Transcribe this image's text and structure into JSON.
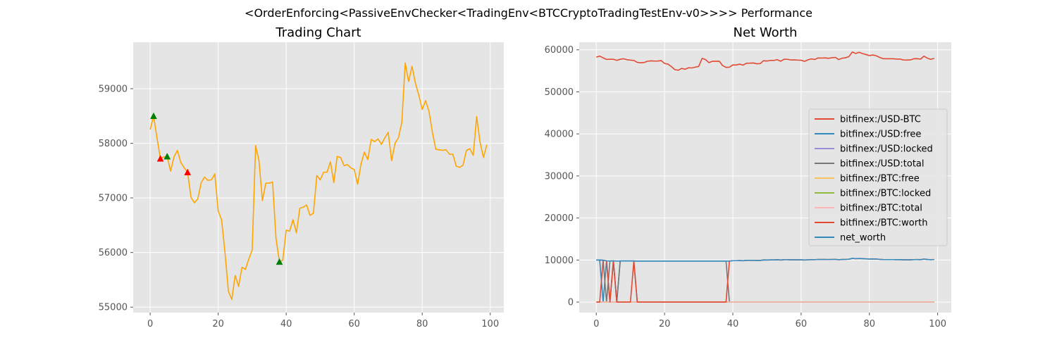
{
  "figure": {
    "suptitle": "<OrderEnforcing<PassiveEnvChecker<TradingEnv<BTCCryptoTradingTestEnv-v0>>>> Performance"
  },
  "colors": {
    "plot_bg": "#e5e5e5",
    "grid": "#ffffff",
    "tick_label": "#555555",
    "price": "#ffa500",
    "buy": "#008000",
    "sell": "#ff0000",
    "text": "#000000"
  },
  "chart_data": [
    {
      "type": "line",
      "title": "Trading Chart",
      "xlabel": "",
      "ylabel": "",
      "xlim": [
        -5,
        104
      ],
      "ylim": [
        54900,
        59850
      ],
      "xticks": [
        0,
        20,
        40,
        60,
        80,
        100
      ],
      "yticks": [
        55000,
        56000,
        57000,
        58000,
        59000
      ],
      "grid": true,
      "series": [
        {
          "color": "#ffa500",
          "values": [
            58250,
            58500,
            58100,
            57720,
            57750,
            57760,
            57490,
            57750,
            57870,
            57650,
            57550,
            57470,
            57010,
            56910,
            56980,
            57280,
            57380,
            57320,
            57330,
            57440,
            56760,
            56600,
            56000,
            55290,
            55140,
            55580,
            55380,
            55730,
            55690,
            55880,
            56050,
            57960,
            57680,
            56950,
            57270,
            57270,
            57290,
            56260,
            55830,
            55860,
            56410,
            56390,
            56600,
            56360,
            56810,
            56830,
            56870,
            56680,
            56720,
            57410,
            57330,
            57470,
            57470,
            57660,
            57280,
            57760,
            57740,
            57590,
            57610,
            57550,
            57520,
            57250,
            57620,
            57840,
            57700,
            58070,
            58030,
            58080,
            57980,
            58100,
            58200,
            57680,
            58000,
            58100,
            58380,
            59470,
            59130,
            59410,
            59100,
            58880,
            58620,
            58780,
            58580,
            58200,
            57890,
            57880,
            57870,
            57880,
            57800,
            57800,
            57580,
            57560,
            57600,
            57870,
            57900,
            57780,
            58490,
            58020,
            57740,
            57970
          ]
        }
      ],
      "buy_markers": [
        {
          "x": 1,
          "y": 58500
        },
        {
          "x": 5,
          "y": 57760
        },
        {
          "x": 38,
          "y": 55830
        }
      ],
      "sell_markers": [
        {
          "x": 3,
          "y": 57720
        },
        {
          "x": 11,
          "y": 57470
        }
      ]
    },
    {
      "type": "line",
      "title": "Net Worth",
      "xlabel": "",
      "ylabel": "",
      "xlim": [
        -5,
        104
      ],
      "ylim": [
        -2500,
        61800
      ],
      "xticks": [
        0,
        20,
        40,
        60,
        80,
        100
      ],
      "yticks": [
        0,
        10000,
        20000,
        30000,
        40000,
        50000,
        60000
      ],
      "grid": true,
      "legend_position": "center-right",
      "series": [
        {
          "name": "bitfinex:/USD-BTC",
          "color": "#e24a33",
          "values": [
            58250,
            58500,
            58100,
            57720,
            57750,
            57760,
            57490,
            57750,
            57870,
            57650,
            57550,
            57470,
            57010,
            56910,
            56980,
            57280,
            57380,
            57320,
            57330,
            57440,
            56760,
            56600,
            56000,
            55290,
            55140,
            55580,
            55380,
            55730,
            55690,
            55880,
            56050,
            57960,
            57680,
            56950,
            57270,
            57270,
            57290,
            56260,
            55830,
            55860,
            56410,
            56390,
            56600,
            56360,
            56810,
            56830,
            56870,
            56680,
            56720,
            57410,
            57330,
            57470,
            57470,
            57660,
            57280,
            57760,
            57740,
            57590,
            57610,
            57550,
            57520,
            57250,
            57620,
            57840,
            57700,
            58070,
            58030,
            58080,
            57980,
            58100,
            58200,
            57680,
            58000,
            58100,
            58380,
            59470,
            59130,
            59410,
            59100,
            58880,
            58620,
            58780,
            58580,
            58200,
            57890,
            57880,
            57870,
            57880,
            57800,
            57800,
            57580,
            57560,
            57600,
            57870,
            57900,
            57780,
            58490,
            58020,
            57740,
            57970
          ]
        },
        {
          "name": "bitfinex:/USD:free",
          "color": "#348abd",
          "values": [
            10000,
            10000,
            0,
            9800,
            0,
            9790,
            0,
            9780,
            9780,
            9780,
            9780,
            9780,
            0,
            0,
            0,
            0,
            0,
            0,
            0,
            0,
            0,
            0,
            0,
            0,
            0,
            0,
            0,
            0,
            0,
            0,
            0,
            0,
            0,
            0,
            0,
            0,
            0,
            0,
            0,
            0,
            0,
            0,
            0,
            0,
            0,
            0,
            0,
            0,
            0,
            0,
            0,
            0,
            0,
            0,
            0,
            0,
            0,
            0,
            0,
            0,
            0,
            0,
            0,
            0,
            0,
            0,
            0,
            0,
            0,
            0,
            0,
            0,
            0,
            0,
            0,
            0,
            0,
            0,
            0,
            0,
            0,
            0,
            0,
            0,
            0,
            0,
            0,
            0,
            0,
            0,
            0,
            0,
            0,
            0,
            0,
            0,
            0,
            0,
            0,
            0
          ]
        },
        {
          "name": "bitfinex:/USD:locked",
          "color": "#988ed5",
          "values": [
            0,
            0,
            0,
            0,
            0,
            0,
            0,
            0,
            0,
            0,
            0,
            0,
            0,
            0,
            0,
            0,
            0,
            0,
            0,
            0,
            0,
            0,
            0,
            0,
            0,
            0,
            0,
            0,
            0,
            0,
            0,
            0,
            0,
            0,
            0,
            0,
            0,
            0,
            0,
            0,
            0,
            0,
            0,
            0,
            0,
            0,
            0,
            0,
            0,
            0,
            0,
            0,
            0,
            0,
            0,
            0,
            0,
            0,
            0,
            0,
            0,
            0,
            0,
            0,
            0,
            0,
            0,
            0,
            0,
            0,
            0,
            0,
            0,
            0,
            0,
            0,
            0,
            0,
            0,
            0,
            0,
            0,
            0,
            0,
            0,
            0,
            0,
            0,
            0,
            0,
            0,
            0,
            0,
            0,
            0,
            0,
            0,
            0,
            0,
            0
          ]
        },
        {
          "name": "bitfinex:/USD:total",
          "color": "#777777",
          "values": [
            10000,
            10000,
            9950,
            0,
            9780,
            9790,
            0,
            9780,
            9780,
            9780,
            9780,
            9780,
            9760,
            9760,
            9760,
            9760,
            9760,
            9760,
            9760,
            9760,
            9760,
            9760,
            9760,
            9760,
            9760,
            9760,
            9760,
            9760,
            9760,
            9760,
            9760,
            9760,
            9760,
            9760,
            9760,
            9760,
            9760,
            9760,
            9760,
            0,
            0,
            0,
            0,
            0,
            0,
            0,
            0,
            0,
            0,
            0,
            0,
            0,
            0,
            0,
            0,
            0,
            0,
            0,
            0,
            0,
            0,
            0,
            0,
            0,
            0,
            0,
            0,
            0,
            0,
            0,
            0,
            0,
            0,
            0,
            0,
            0,
            0,
            0,
            0,
            0,
            0,
            0,
            0,
            0,
            0,
            0,
            0,
            0,
            0,
            0,
            0,
            0,
            0,
            0,
            0,
            0,
            0,
            0,
            0,
            0
          ]
        },
        {
          "name": "bitfinex:/BTC:free",
          "color": "#fbc15e",
          "values": [
            0,
            0,
            0.17,
            0.17,
            0.17,
            0,
            0,
            0,
            0,
            0,
            0,
            0,
            0,
            0,
            0,
            0,
            0,
            0,
            0,
            0,
            0,
            0,
            0,
            0,
            0,
            0,
            0,
            0,
            0,
            0,
            0,
            0,
            0,
            0,
            0,
            0,
            0,
            0,
            0,
            0.17,
            0.17,
            0.17,
            0.17,
            0.17,
            0.17,
            0.17,
            0.17,
            0.17,
            0.17,
            0.17,
            0.17,
            0.17,
            0.17,
            0.17,
            0.17,
            0.17,
            0.17,
            0.17,
            0.17,
            0.17,
            0.17,
            0.17,
            0.17,
            0.17,
            0.17,
            0.17,
            0.17,
            0.17,
            0.17,
            0.17,
            0.17,
            0.17,
            0.17,
            0.17,
            0.17,
            0.17,
            0.17,
            0.17,
            0.17,
            0.17,
            0.17,
            0.17,
            0.17,
            0.17,
            0.17,
            0.17,
            0.17,
            0.17,
            0.17,
            0.17,
            0.17,
            0.17,
            0.17,
            0.17,
            0.17,
            0.17,
            0.17,
            0.17,
            0.17,
            0.17
          ]
        },
        {
          "name": "bitfinex:/BTC:locked",
          "color": "#8eba42",
          "values": [
            0,
            0,
            0,
            0,
            0,
            0,
            0,
            0,
            0,
            0,
            0,
            0,
            0,
            0,
            0,
            0,
            0,
            0,
            0,
            0,
            0,
            0,
            0,
            0,
            0,
            0,
            0,
            0,
            0,
            0,
            0,
            0,
            0,
            0,
            0,
            0,
            0,
            0,
            0,
            0,
            0,
            0,
            0,
            0,
            0,
            0,
            0,
            0,
            0,
            0,
            0,
            0,
            0,
            0,
            0,
            0,
            0,
            0,
            0,
            0,
            0,
            0,
            0,
            0,
            0,
            0,
            0,
            0,
            0,
            0,
            0,
            0,
            0,
            0,
            0,
            0,
            0,
            0,
            0,
            0,
            0,
            0,
            0,
            0,
            0,
            0,
            0,
            0,
            0,
            0,
            0,
            0,
            0,
            0,
            0,
            0,
            0,
            0,
            0,
            0
          ]
        },
        {
          "name": "bitfinex:/BTC:total",
          "color": "#ffb5b8",
          "values": [
            0,
            0,
            0.17,
            0.17,
            0.17,
            0,
            0,
            0,
            0,
            0,
            0,
            0,
            0,
            0,
            0,
            0,
            0,
            0,
            0,
            0,
            0,
            0,
            0,
            0,
            0,
            0,
            0,
            0,
            0,
            0,
            0,
            0,
            0,
            0,
            0,
            0,
            0,
            0,
            0,
            0.17,
            0.17,
            0.17,
            0.17,
            0.17,
            0.17,
            0.17,
            0.17,
            0.17,
            0.17,
            0.17,
            0.17,
            0.17,
            0.17,
            0.17,
            0.17,
            0.17,
            0.17,
            0.17,
            0.17,
            0.17,
            0.17,
            0.17,
            0.17,
            0.17,
            0.17,
            0.17,
            0.17,
            0.17,
            0.17,
            0.17,
            0.17,
            0.17,
            0.17,
            0.17,
            0.17,
            0.17,
            0.17,
            0.17,
            0.17,
            0.17,
            0.17,
            0.17,
            0.17,
            0.17,
            0.17,
            0.17,
            0.17,
            0.17,
            0.17,
            0.17,
            0.17,
            0.17,
            0.17,
            0.17,
            0.17,
            0.17,
            0.17,
            0.17,
            0.17,
            0.17
          ]
        },
        {
          "name": "bitfinex:/BTC:worth",
          "color": "#e24a33",
          "values": [
            0,
            0,
            9950,
            9800,
            0,
            9790,
            0,
            0,
            0,
            0,
            0,
            9780,
            0,
            0,
            0,
            0,
            0,
            0,
            0,
            0,
            0,
            0,
            0,
            0,
            0,
            0,
            0,
            0,
            0,
            0,
            0,
            0,
            0,
            0,
            0,
            0,
            0,
            0,
            0,
            9760,
            9850,
            9850,
            9880,
            9840,
            9920,
            9920,
            9930,
            9900,
            9900,
            10020,
            10010,
            10030,
            10030,
            10070,
            10000,
            10080,
            10080,
            10050,
            10060,
            10050,
            10040,
            10000,
            10060,
            10100,
            10080,
            10140,
            10130,
            10140,
            10120,
            10140,
            10160,
            10070,
            10130,
            10140,
            10190,
            10380,
            10320,
            10370,
            10320,
            10280,
            10230,
            10260,
            10230,
            10160,
            10110,
            10100,
            10100,
            10100,
            10090,
            10090,
            10050,
            10050,
            10050,
            10100,
            10110,
            10090,
            10210,
            10130,
            10080,
            10120
          ]
        },
        {
          "name": "net_worth",
          "color": "#348abd",
          "values": [
            10000,
            10000,
            9950,
            9800,
            9780,
            9790,
            9760,
            9780,
            9780,
            9780,
            9780,
            9780,
            9760,
            9760,
            9760,
            9760,
            9760,
            9760,
            9760,
            9760,
            9760,
            9760,
            9760,
            9760,
            9760,
            9760,
            9760,
            9760,
            9760,
            9760,
            9760,
            9760,
            9760,
            9760,
            9760,
            9760,
            9760,
            9760,
            9760,
            9760,
            9850,
            9850,
            9880,
            9840,
            9920,
            9920,
            9930,
            9900,
            9900,
            10020,
            10010,
            10030,
            10030,
            10070,
            10000,
            10080,
            10080,
            10050,
            10060,
            10050,
            10040,
            10000,
            10060,
            10100,
            10080,
            10140,
            10130,
            10140,
            10120,
            10140,
            10160,
            10070,
            10130,
            10140,
            10190,
            10380,
            10320,
            10370,
            10320,
            10280,
            10230,
            10260,
            10230,
            10160,
            10110,
            10100,
            10100,
            10100,
            10090,
            10090,
            10050,
            10050,
            10050,
            10100,
            10110,
            10090,
            10210,
            10130,
            10080,
            10120
          ]
        }
      ]
    }
  ]
}
